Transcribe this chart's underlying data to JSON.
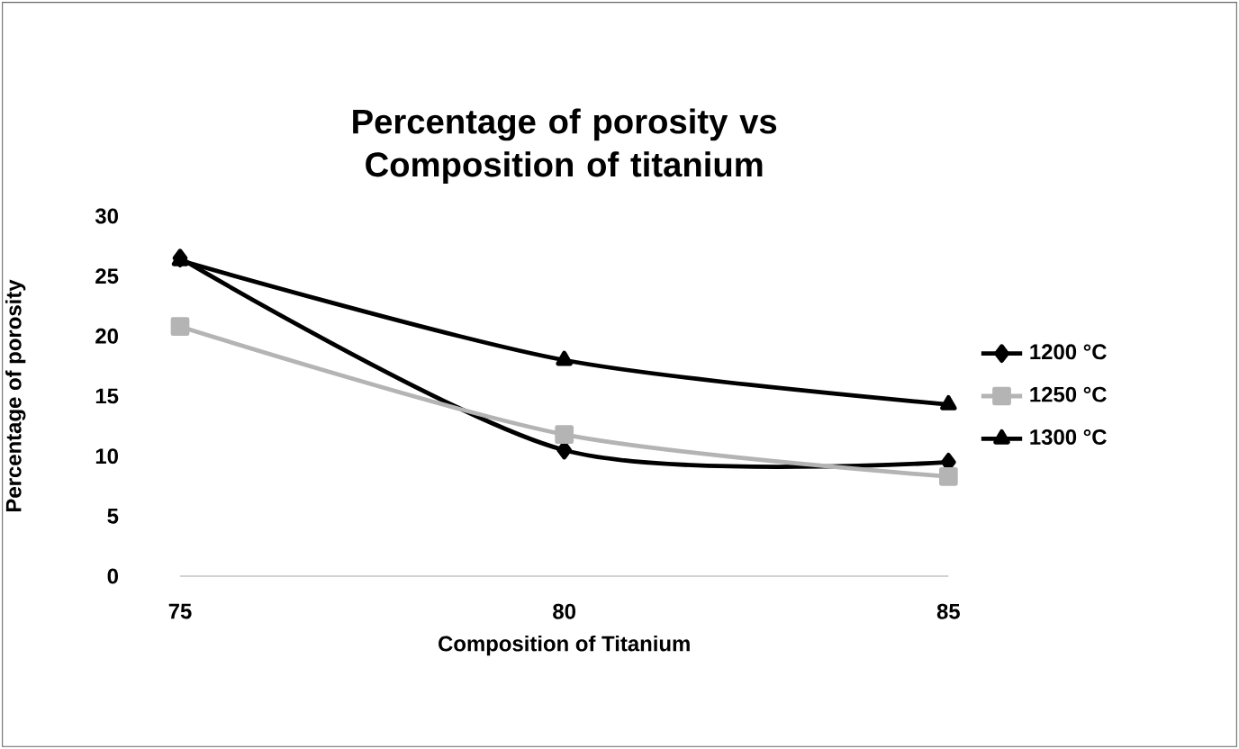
{
  "chart_data": {
    "type": "line",
    "title": "Percentage of porosity vs Composition of titanium",
    "xlabel": "Composition of Titanium",
    "ylabel": "Percentage of porosity",
    "categories": [
      "75",
      "80",
      "85"
    ],
    "series": [
      {
        "name": "1200 °C",
        "color": "#000000",
        "marker": "diamond",
        "values": [
          26.5,
          10.5,
          9.5
        ]
      },
      {
        "name": "1250 °C",
        "color": "#b4b4b4",
        "marker": "square",
        "values": [
          20.8,
          11.8,
          8.3
        ]
      },
      {
        "name": "1300 °C",
        "color": "#000000",
        "marker": "triangle",
        "values": [
          26.3,
          18,
          14.3
        ]
      }
    ],
    "ylim": [
      0,
      30
    ],
    "yticks": [
      0,
      5,
      10,
      15,
      20,
      25,
      30
    ],
    "grid": false,
    "legend": "right"
  }
}
